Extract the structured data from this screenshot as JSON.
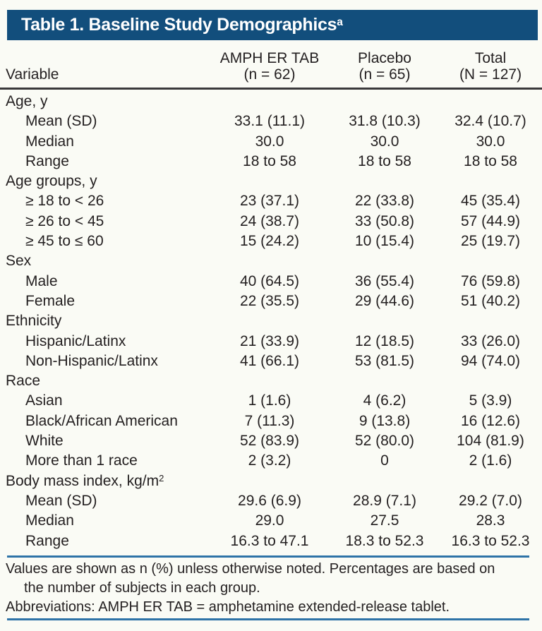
{
  "colors": {
    "banner": "#124e7c",
    "rule_blue": "#2e73a7",
    "rule_dark": "#3a393b",
    "text": "#231f20",
    "background": "#fafbf5",
    "title_text": "#ffffff"
  },
  "title": {
    "text": "Table 1. Baseline Study Demographics",
    "superscript": "a"
  },
  "header": {
    "variable_label": "Variable",
    "columns": [
      {
        "line1": "AMPH ER TAB",
        "line2": "(n = 62)"
      },
      {
        "line1": "Placebo",
        "line2": "(n = 65)"
      },
      {
        "line1": "Total",
        "line2": "(N = 127)"
      }
    ]
  },
  "sections": [
    {
      "label": "Age, y",
      "label_sup": "",
      "rows": [
        {
          "label": "Mean (SD)",
          "values": [
            "33.1 (11.1)",
            "31.8 (10.3)",
            "32.4 (10.7)"
          ]
        },
        {
          "label": "Median",
          "values": [
            "30.0",
            "30.0",
            "30.0"
          ]
        },
        {
          "label": "Range",
          "values": [
            "18 to 58",
            "18 to 58",
            "18 to 58"
          ]
        }
      ]
    },
    {
      "label": "Age groups, y",
      "label_sup": "",
      "rows": [
        {
          "label": "≥ 18 to < 26",
          "values": [
            "23 (37.1)",
            "22 (33.8)",
            "45 (35.4)"
          ]
        },
        {
          "label": "≥ 26 to < 45",
          "values": [
            "24 (38.7)",
            "33 (50.8)",
            "57 (44.9)"
          ]
        },
        {
          "label": "≥ 45 to ≤ 60",
          "values": [
            "15 (24.2)",
            "10 (15.4)",
            "25 (19.7)"
          ]
        }
      ]
    },
    {
      "label": "Sex",
      "label_sup": "",
      "rows": [
        {
          "label": "Male",
          "values": [
            "40 (64.5)",
            "36 (55.4)",
            "76 (59.8)"
          ]
        },
        {
          "label": "Female",
          "values": [
            "22 (35.5)",
            "29 (44.6)",
            "51 (40.2)"
          ]
        }
      ]
    },
    {
      "label": "Ethnicity",
      "label_sup": "",
      "rows": [
        {
          "label": "Hispanic/Latinx",
          "values": [
            "21 (33.9)",
            "12 (18.5)",
            "33 (26.0)"
          ]
        },
        {
          "label": "Non-Hispanic/Latinx",
          "values": [
            "41 (66.1)",
            "53 (81.5)",
            "94 (74.0)"
          ]
        }
      ]
    },
    {
      "label": "Race",
      "label_sup": "",
      "rows": [
        {
          "label": "Asian",
          "values": [
            "1 (1.6)",
            "4 (6.2)",
            "5 (3.9)"
          ]
        },
        {
          "label": "Black/African American",
          "values": [
            "7 (11.3)",
            "9 (13.8)",
            "16 (12.6)"
          ]
        },
        {
          "label": "White",
          "values": [
            "52 (83.9)",
            "52 (80.0)",
            "104 (81.9)"
          ]
        },
        {
          "label": "More than 1 race",
          "values": [
            "2 (3.2)",
            "0",
            "2 (1.6)"
          ]
        }
      ]
    },
    {
      "label": "Body mass index, kg/m",
      "label_sup": "2",
      "rows": [
        {
          "label": "Mean (SD)",
          "values": [
            "29.6 (6.9)",
            "28.9 (7.1)",
            "29.2 (7.0)"
          ]
        },
        {
          "label": "Median",
          "values": [
            "29.0",
            "27.5",
            "28.3"
          ]
        },
        {
          "label": "Range",
          "values": [
            "16.3 to 47.1",
            "18.3 to 52.3",
            "16.3 to 52.3"
          ]
        }
      ]
    }
  ],
  "footnotes": {
    "a_marker": "a",
    "a_text": "Values are shown as n (%) unless otherwise noted. Percentages are based on the number of subjects in each group.",
    "abbreviations": "Abbreviations: AMPH ER TAB = amphetamine extended-release tablet."
  }
}
